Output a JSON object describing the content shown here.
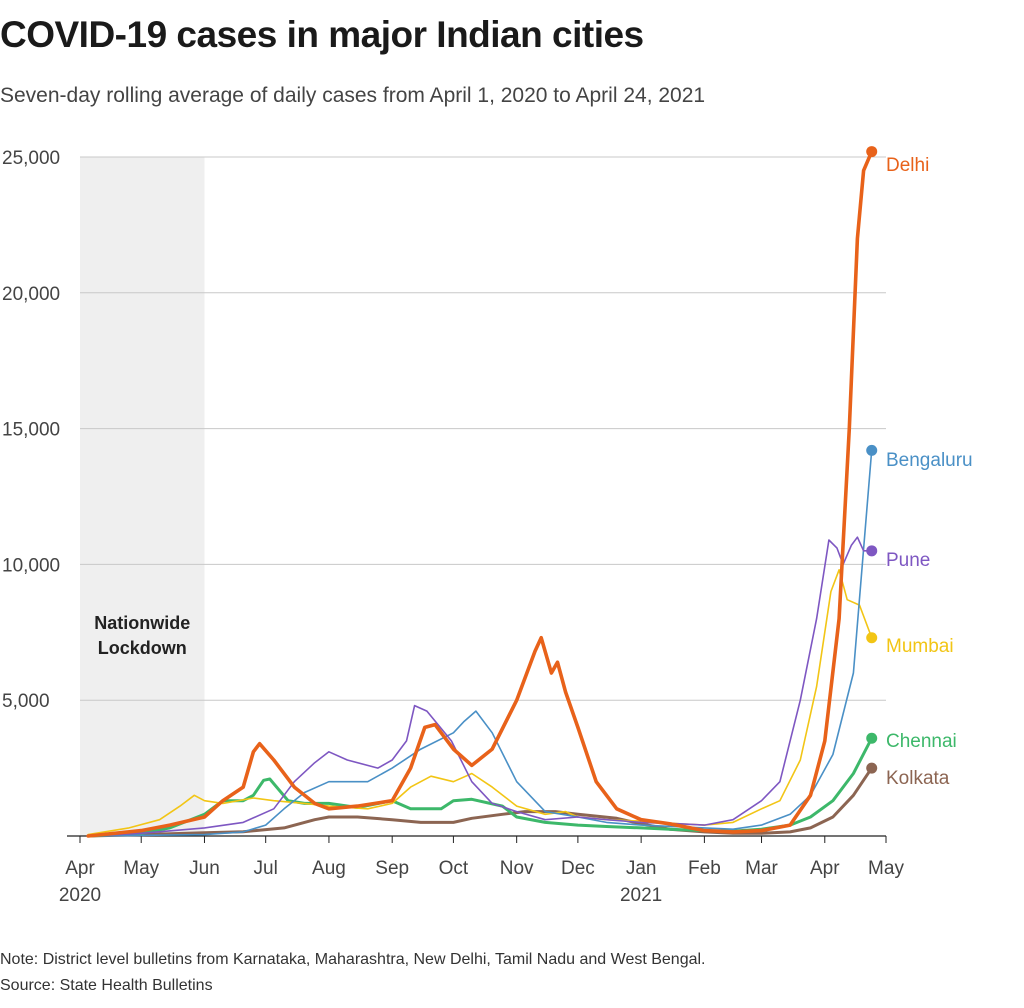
{
  "title": "COVID-19 cases in major Indian cities",
  "subtitle": "Seven-day rolling average of daily cases from April 1, 2020 to April 24, 2021",
  "note": "Note: District level bulletins from Karnataka, Maharashtra, New Delhi, Tamil Nadu and West Bengal.",
  "source": "Source: State Health Bulletins",
  "chart_data": {
    "type": "line",
    "ylim": [
      0,
      25000
    ],
    "yticks": [
      {
        "value": 5000,
        "label": "5,000"
      },
      {
        "value": 10000,
        "label": "10,000"
      },
      {
        "value": 15000,
        "label": "15,000"
      },
      {
        "value": 20000,
        "label": "20,000"
      },
      {
        "value": 25000,
        "label": "25,000"
      }
    ],
    "xlim": [
      "2020-04-01",
      "2021-05-01"
    ],
    "xticks": [
      {
        "date": "2020-04-01",
        "label": "Apr",
        "year": "2020"
      },
      {
        "date": "2020-05-01",
        "label": "May"
      },
      {
        "date": "2020-06-01",
        "label": "Jun"
      },
      {
        "date": "2020-07-01",
        "label": "Jul"
      },
      {
        "date": "2020-08-01",
        "label": "Aug"
      },
      {
        "date": "2020-09-01",
        "label": "Sep"
      },
      {
        "date": "2020-10-01",
        "label": "Oct"
      },
      {
        "date": "2020-11-01",
        "label": "Nov"
      },
      {
        "date": "2020-12-01",
        "label": "Dec"
      },
      {
        "date": "2021-01-01",
        "label": "Jan",
        "year": "2021"
      },
      {
        "date": "2021-02-01",
        "label": "Feb"
      },
      {
        "date": "2021-03-01",
        "label": "Mar"
      },
      {
        "date": "2021-04-01",
        "label": "Apr"
      },
      {
        "date": "2021-05-01",
        "label": "May"
      }
    ],
    "grid": true,
    "lockdown": {
      "start": "2020-04-01",
      "end": "2020-06-01",
      "label_line1": "Nationwide",
      "label_line2": "Lockdown",
      "color": "#efefef"
    },
    "series": [
      {
        "name": "Kolkata",
        "color": "#8c6552",
        "width": 3,
        "points": [
          [
            "2020-04-05",
            0
          ],
          [
            "2020-05-01",
            50
          ],
          [
            "2020-06-01",
            120
          ],
          [
            "2020-06-20",
            160
          ],
          [
            "2020-07-10",
            300
          ],
          [
            "2020-07-25",
            600
          ],
          [
            "2020-08-01",
            700
          ],
          [
            "2020-08-15",
            700
          ],
          [
            "2020-09-01",
            600
          ],
          [
            "2020-09-15",
            500
          ],
          [
            "2020-10-01",
            500
          ],
          [
            "2020-10-10",
            650
          ],
          [
            "2020-10-25",
            800
          ],
          [
            "2020-11-05",
            900
          ],
          [
            "2020-11-20",
            900
          ],
          [
            "2020-12-01",
            800
          ],
          [
            "2020-12-20",
            650
          ],
          [
            "2021-01-01",
            450
          ],
          [
            "2021-01-15",
            250
          ],
          [
            "2021-02-01",
            150
          ],
          [
            "2021-02-15",
            100
          ],
          [
            "2021-03-01",
            100
          ],
          [
            "2021-03-15",
            150
          ],
          [
            "2021-03-25",
            300
          ],
          [
            "2021-04-05",
            700
          ],
          [
            "2021-04-15",
            1500
          ],
          [
            "2021-04-24",
            2500
          ]
        ]
      },
      {
        "name": "Chennai",
        "color": "#3db86a",
        "width": 3,
        "points": [
          [
            "2020-04-05",
            0
          ],
          [
            "2020-05-01",
            100
          ],
          [
            "2020-05-15",
            300
          ],
          [
            "2020-06-01",
            800
          ],
          [
            "2020-06-10",
            1300
          ],
          [
            "2020-06-20",
            1300
          ],
          [
            "2020-06-25",
            1500
          ],
          [
            "2020-06-30",
            2050
          ],
          [
            "2020-07-03",
            2100
          ],
          [
            "2020-07-12",
            1300
          ],
          [
            "2020-07-20",
            1200
          ],
          [
            "2020-08-01",
            1200
          ],
          [
            "2020-08-15",
            1050
          ],
          [
            "2020-09-01",
            1300
          ],
          [
            "2020-09-10",
            1000
          ],
          [
            "2020-09-25",
            1000
          ],
          [
            "2020-10-01",
            1300
          ],
          [
            "2020-10-10",
            1350
          ],
          [
            "2020-10-25",
            1100
          ],
          [
            "2020-11-01",
            700
          ],
          [
            "2020-11-15",
            500
          ],
          [
            "2020-12-01",
            400
          ],
          [
            "2020-12-15",
            350
          ],
          [
            "2021-01-01",
            300
          ],
          [
            "2021-01-15",
            250
          ],
          [
            "2021-02-01",
            200
          ],
          [
            "2021-02-15",
            180
          ],
          [
            "2021-03-01",
            250
          ],
          [
            "2021-03-15",
            400
          ],
          [
            "2021-03-25",
            700
          ],
          [
            "2021-04-05",
            1300
          ],
          [
            "2021-04-15",
            2300
          ],
          [
            "2021-04-24",
            3600
          ]
        ]
      },
      {
        "name": "Mumbai",
        "color": "#f2c515",
        "width": 1.6,
        "points": [
          [
            "2020-04-05",
            50
          ],
          [
            "2020-04-25",
            300
          ],
          [
            "2020-05-10",
            600
          ],
          [
            "2020-05-20",
            1100
          ],
          [
            "2020-05-27",
            1500
          ],
          [
            "2020-06-01",
            1300
          ],
          [
            "2020-06-10",
            1200
          ],
          [
            "2020-06-25",
            1400
          ],
          [
            "2020-07-05",
            1300
          ],
          [
            "2020-07-20",
            1200
          ],
          [
            "2020-08-01",
            1100
          ],
          [
            "2020-08-20",
            1000
          ],
          [
            "2020-09-01",
            1200
          ],
          [
            "2020-09-10",
            1800
          ],
          [
            "2020-09-20",
            2200
          ],
          [
            "2020-10-01",
            2000
          ],
          [
            "2020-10-10",
            2300
          ],
          [
            "2020-10-20",
            1800
          ],
          [
            "2020-11-01",
            1100
          ],
          [
            "2020-11-15",
            800
          ],
          [
            "2020-11-25",
            900
          ],
          [
            "2020-12-01",
            700
          ],
          [
            "2020-12-15",
            600
          ],
          [
            "2021-01-01",
            550
          ],
          [
            "2021-01-20",
            450
          ],
          [
            "2021-02-01",
            400
          ],
          [
            "2021-02-15",
            500
          ],
          [
            "2021-03-01",
            1000
          ],
          [
            "2021-03-10",
            1300
          ],
          [
            "2021-03-20",
            2800
          ],
          [
            "2021-03-28",
            5500
          ],
          [
            "2021-04-04",
            9000
          ],
          [
            "2021-04-08",
            9800
          ],
          [
            "2021-04-12",
            8700
          ],
          [
            "2021-04-18",
            8500
          ],
          [
            "2021-04-24",
            7300
          ]
        ]
      },
      {
        "name": "Bengaluru",
        "color": "#4a90c6",
        "width": 1.6,
        "points": [
          [
            "2020-04-05",
            0
          ],
          [
            "2020-06-01",
            50
          ],
          [
            "2020-06-20",
            150
          ],
          [
            "2020-07-01",
            400
          ],
          [
            "2020-07-10",
            1000
          ],
          [
            "2020-07-20",
            1600
          ],
          [
            "2020-08-01",
            2000
          ],
          [
            "2020-08-20",
            2000
          ],
          [
            "2020-09-01",
            2500
          ],
          [
            "2020-09-15",
            3200
          ],
          [
            "2020-10-01",
            3800
          ],
          [
            "2020-10-06",
            4200
          ],
          [
            "2020-10-12",
            4600
          ],
          [
            "2020-10-20",
            3800
          ],
          [
            "2020-11-01",
            2000
          ],
          [
            "2020-11-15",
            900
          ],
          [
            "2020-12-01",
            700
          ],
          [
            "2020-12-15",
            500
          ],
          [
            "2021-01-01",
            400
          ],
          [
            "2021-02-01",
            300
          ],
          [
            "2021-02-15",
            250
          ],
          [
            "2021-03-01",
            400
          ],
          [
            "2021-03-15",
            800
          ],
          [
            "2021-03-25",
            1500
          ],
          [
            "2021-04-05",
            3000
          ],
          [
            "2021-04-15",
            6000
          ],
          [
            "2021-04-24",
            14200
          ]
        ]
      },
      {
        "name": "Pune",
        "color": "#7e57c2",
        "width": 1.6,
        "points": [
          [
            "2020-04-05",
            0
          ],
          [
            "2020-05-01",
            100
          ],
          [
            "2020-06-01",
            300
          ],
          [
            "2020-06-20",
            500
          ],
          [
            "2020-07-05",
            1000
          ],
          [
            "2020-07-15",
            2000
          ],
          [
            "2020-07-25",
            2700
          ],
          [
            "2020-08-01",
            3100
          ],
          [
            "2020-08-10",
            2800
          ],
          [
            "2020-08-25",
            2500
          ],
          [
            "2020-09-01",
            2800
          ],
          [
            "2020-09-08",
            3500
          ],
          [
            "2020-09-12",
            4800
          ],
          [
            "2020-09-18",
            4600
          ],
          [
            "2020-09-30",
            3500
          ],
          [
            "2020-10-10",
            2000
          ],
          [
            "2020-10-20",
            1200
          ],
          [
            "2020-11-01",
            900
          ],
          [
            "2020-11-15",
            600
          ],
          [
            "2020-12-01",
            700
          ],
          [
            "2020-12-15",
            600
          ],
          [
            "2021-01-01",
            500
          ],
          [
            "2021-01-20",
            450
          ],
          [
            "2021-02-01",
            400
          ],
          [
            "2021-02-15",
            600
          ],
          [
            "2021-03-01",
            1300
          ],
          [
            "2021-03-10",
            2000
          ],
          [
            "2021-03-20",
            5000
          ],
          [
            "2021-03-28",
            8000
          ],
          [
            "2021-04-03",
            10900
          ],
          [
            "2021-04-07",
            10600
          ],
          [
            "2021-04-10",
            10000
          ],
          [
            "2021-04-14",
            10700
          ],
          [
            "2021-04-17",
            11000
          ],
          [
            "2021-04-20",
            10500
          ],
          [
            "2021-04-24",
            10500
          ]
        ]
      },
      {
        "name": "Delhi",
        "color": "#e8621a",
        "width": 3.6,
        "points": [
          [
            "2020-04-05",
            0
          ],
          [
            "2020-05-01",
            200
          ],
          [
            "2020-05-15",
            400
          ],
          [
            "2020-06-01",
            700
          ],
          [
            "2020-06-10",
            1300
          ],
          [
            "2020-06-20",
            1800
          ],
          [
            "2020-06-25",
            3100
          ],
          [
            "2020-06-28",
            3400
          ],
          [
            "2020-07-05",
            2800
          ],
          [
            "2020-07-15",
            1800
          ],
          [
            "2020-07-25",
            1200
          ],
          [
            "2020-08-01",
            1000
          ],
          [
            "2020-08-15",
            1100
          ],
          [
            "2020-09-01",
            1300
          ],
          [
            "2020-09-10",
            2500
          ],
          [
            "2020-09-17",
            4000
          ],
          [
            "2020-09-22",
            4100
          ],
          [
            "2020-10-01",
            3200
          ],
          [
            "2020-10-10",
            2600
          ],
          [
            "2020-10-20",
            3200
          ],
          [
            "2020-11-01",
            5000
          ],
          [
            "2020-11-10",
            6800
          ],
          [
            "2020-11-13",
            7300
          ],
          [
            "2020-11-18",
            6000
          ],
          [
            "2020-11-21",
            6400
          ],
          [
            "2020-11-25",
            5300
          ],
          [
            "2020-12-01",
            4000
          ],
          [
            "2020-12-10",
            2000
          ],
          [
            "2020-12-20",
            1000
          ],
          [
            "2021-01-01",
            600
          ],
          [
            "2021-01-15",
            450
          ],
          [
            "2021-02-01",
            200
          ],
          [
            "2021-02-15",
            150
          ],
          [
            "2021-03-01",
            200
          ],
          [
            "2021-03-15",
            400
          ],
          [
            "2021-03-25",
            1500
          ],
          [
            "2021-04-01",
            3500
          ],
          [
            "2021-04-08",
            8000
          ],
          [
            "2021-04-13",
            15000
          ],
          [
            "2021-04-17",
            22000
          ],
          [
            "2021-04-20",
            24500
          ],
          [
            "2021-04-24",
            25200
          ]
        ]
      }
    ]
  }
}
